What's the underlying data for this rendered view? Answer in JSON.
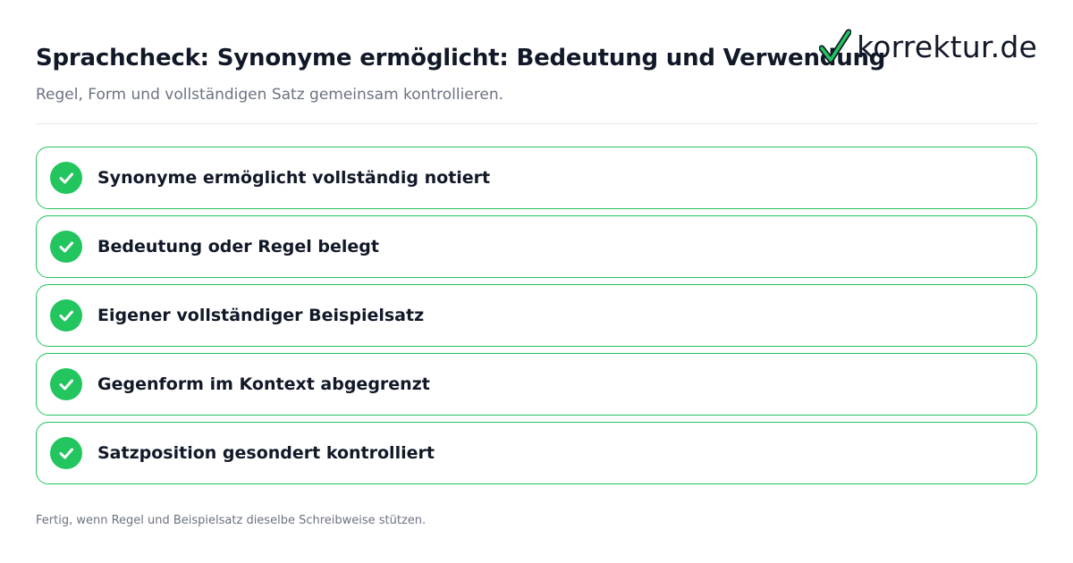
{
  "header": {
    "title": "Sprachcheck: Synonyme ermöglicht: Bedeutung und Verwendung",
    "subtitle": "Regel, Form und vollständigen Satz gemeinsam kontrollieren."
  },
  "brand": {
    "name": "korrektur.de",
    "icon": "checkmark-logo-icon",
    "icon_color": "#22c55e"
  },
  "checklist": {
    "item_icon": "check-circle-icon",
    "accent_color": "#22c55e",
    "items": [
      {
        "label": "Synonyme ermöglicht vollständig notiert",
        "checked": true
      },
      {
        "label": "Bedeutung oder Regel belegt",
        "checked": true
      },
      {
        "label": "Eigener vollständiger Beispielsatz",
        "checked": true
      },
      {
        "label": "Gegenform im Kontext abgegrenzt",
        "checked": true
      },
      {
        "label": "Satzposition gesondert kontrolliert",
        "checked": true
      }
    ]
  },
  "footer": {
    "note": "Fertig, wenn Regel und Beispielsatz dieselbe Schreibweise stützen."
  }
}
